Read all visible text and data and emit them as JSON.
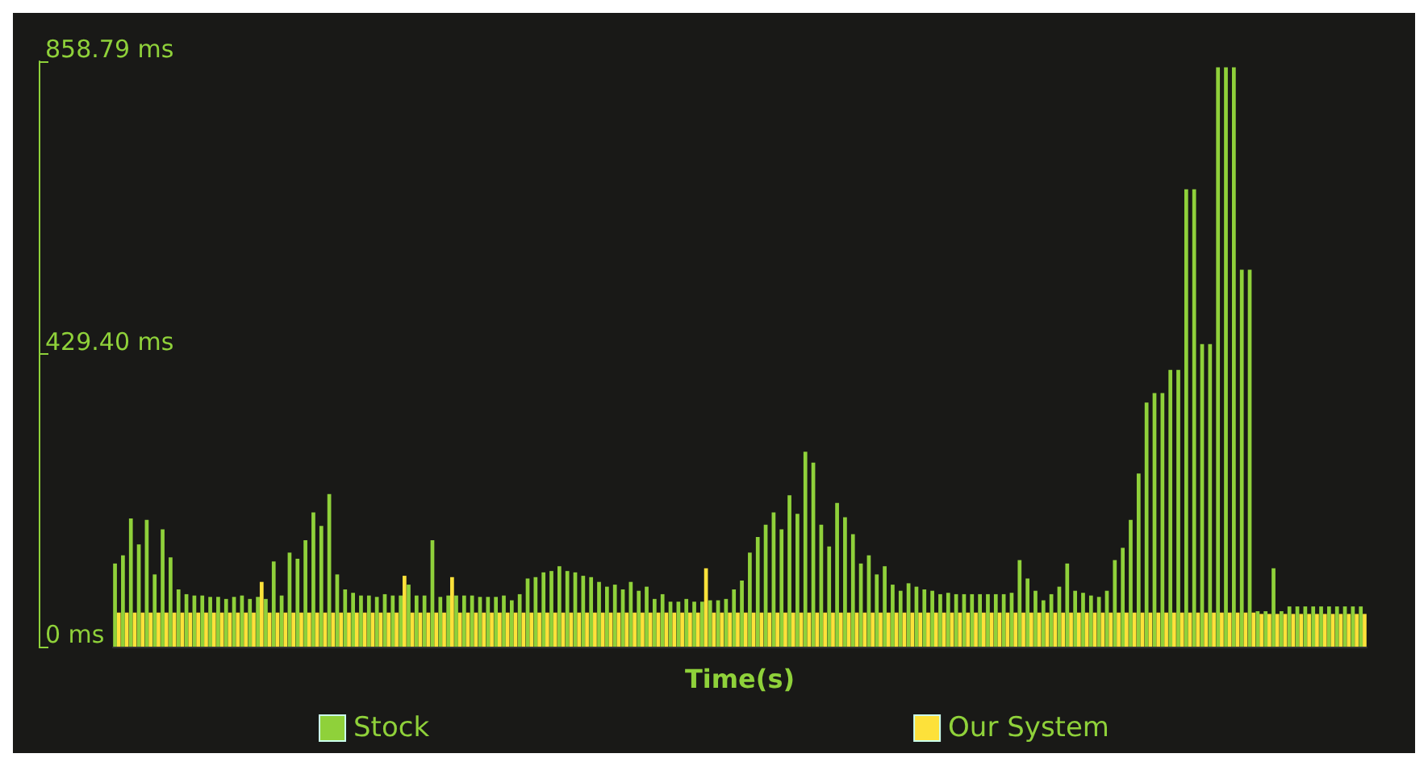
{
  "chart_data": {
    "type": "bar",
    "xlabel": "Time(s)",
    "categories": [
      null,
      null,
      null,
      null,
      null,
      null,
      null,
      null,
      null,
      null,
      null,
      null,
      null,
      null,
      null,
      null,
      null,
      null,
      null,
      null,
      null,
      null,
      null,
      null,
      null,
      null,
      null,
      null,
      null,
      null,
      null,
      null,
      null,
      null,
      null,
      null,
      null,
      null,
      null,
      null,
      null,
      null,
      null,
      null,
      null,
      null,
      null,
      null,
      null,
      null,
      null,
      null,
      null,
      null,
      null,
      null,
      null,
      null,
      null,
      null,
      null,
      null,
      null,
      null,
      null,
      null,
      null,
      null,
      null,
      null,
      null,
      null,
      null,
      null,
      null,
      null,
      null,
      null,
      null,
      null,
      null,
      null,
      null,
      null,
      null,
      null,
      null,
      null,
      null,
      null,
      null,
      null,
      null,
      null,
      null,
      null,
      null,
      null,
      null,
      null,
      null,
      null,
      null,
      null,
      null,
      null,
      null,
      null,
      null,
      null,
      null,
      null,
      null,
      null,
      null,
      null,
      null,
      null,
      null,
      null,
      null,
      null,
      null,
      null,
      null,
      null,
      null,
      null,
      null,
      null,
      null,
      null,
      null,
      null,
      null,
      null,
      null,
      null,
      null,
      null,
      null,
      null,
      null,
      null,
      null,
      null,
      null,
      null,
      null,
      null,
      null,
      null,
      null,
      null,
      null,
      null,
      null,
      null
    ],
    "series": [
      {
        "name": "Stock",
        "color": "#8fd13a",
        "values": [
          122,
          134,
          188,
          150,
          186,
          106,
          172,
          131,
          84,
          77,
          75,
          75,
          73,
          73,
          70,
          73,
          75,
          70,
          73,
          70,
          125,
          75,
          138,
          129,
          156,
          197,
          177,
          224,
          106,
          84,
          79,
          75,
          75,
          73,
          77,
          75,
          75,
          91,
          75,
          75,
          156,
          73,
          75,
          75,
          75,
          75,
          73,
          73,
          73,
          75,
          68,
          77,
          100,
          102,
          109,
          111,
          118,
          111,
          109,
          104,
          102,
          95,
          88,
          91,
          84,
          95,
          82,
          88,
          70,
          77,
          66,
          66,
          70,
          66,
          66,
          68,
          68,
          70,
          84,
          97,
          138,
          161,
          179,
          197,
          172,
          222,
          195,
          286,
          270,
          179,
          147,
          211,
          190,
          165,
          122,
          134,
          106,
          118,
          91,
          82,
          93,
          88,
          84,
          82,
          77,
          79,
          77,
          77,
          77,
          77,
          77,
          77,
          77,
          79,
          127,
          100,
          82,
          68,
          77,
          88,
          122,
          82,
          79,
          75,
          73,
          82,
          127,
          145,
          186,
          254,
          358,
          372,
          372,
          406,
          406,
          671,
          671,
          444,
          444,
          850,
          850,
          850,
          553,
          553,
          52,
          52,
          115,
          52,
          59,
          59,
          59,
          59,
          59,
          59,
          59,
          59,
          59,
          59
        ]
      },
      {
        "name": "Our System",
        "color": "#fde13a",
        "values": [
          50,
          50,
          50,
          50,
          50,
          50,
          50,
          50,
          50,
          50,
          50,
          50,
          50,
          50,
          50,
          50,
          50,
          50,
          95,
          50,
          50,
          50,
          50,
          50,
          50,
          50,
          50,
          50,
          50,
          50,
          50,
          50,
          50,
          50,
          50,
          50,
          104,
          50,
          50,
          50,
          50,
          50,
          102,
          50,
          50,
          50,
          50,
          50,
          50,
          50,
          50,
          50,
          50,
          50,
          50,
          50,
          50,
          50,
          50,
          50,
          50,
          50,
          50,
          50,
          50,
          50,
          50,
          50,
          50,
          50,
          50,
          50,
          50,
          50,
          115,
          50,
          50,
          50,
          50,
          50,
          50,
          50,
          50,
          50,
          50,
          50,
          50,
          50,
          50,
          50,
          50,
          50,
          50,
          50,
          50,
          50,
          50,
          50,
          50,
          50,
          50,
          50,
          50,
          50,
          50,
          50,
          50,
          50,
          50,
          50,
          50,
          50,
          50,
          50,
          50,
          50,
          50,
          50,
          50,
          50,
          50,
          50,
          50,
          50,
          50,
          50,
          50,
          50,
          50,
          50,
          50,
          50,
          50,
          50,
          50,
          50,
          50,
          50,
          50,
          50,
          50,
          50,
          50,
          50,
          48,
          48,
          48,
          48,
          48,
          48,
          48,
          48,
          48,
          48,
          48,
          48,
          48,
          48
        ]
      }
    ],
    "ylim": [
      0,
      858.79
    ],
    "yticks": [
      {
        "value": 0,
        "label": "0 ms"
      },
      {
        "value": 429.4,
        "label": "429.40 ms"
      },
      {
        "value": 858.79,
        "label": "858.79 ms"
      }
    ],
    "tick_labels": "y",
    "legend": "bottom"
  }
}
